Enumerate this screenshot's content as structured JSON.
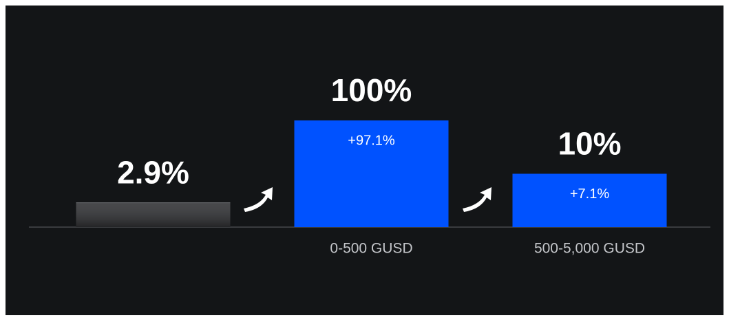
{
  "chart_data": {
    "type": "bar",
    "log_scale": true,
    "categories": [
      null,
      "0-500 GUSD",
      "500-5,000 GUSD"
    ],
    "values": [
      2.9,
      100,
      10
    ],
    "value_labels": [
      "2.9%",
      "100%",
      "10%"
    ],
    "increase_labels": [
      null,
      "+97.1%",
      "+7.1%"
    ],
    "colors": [
      "#2f3033",
      "#0052ff",
      "#0052ff"
    ],
    "ylim": [
      1,
      100
    ]
  }
}
